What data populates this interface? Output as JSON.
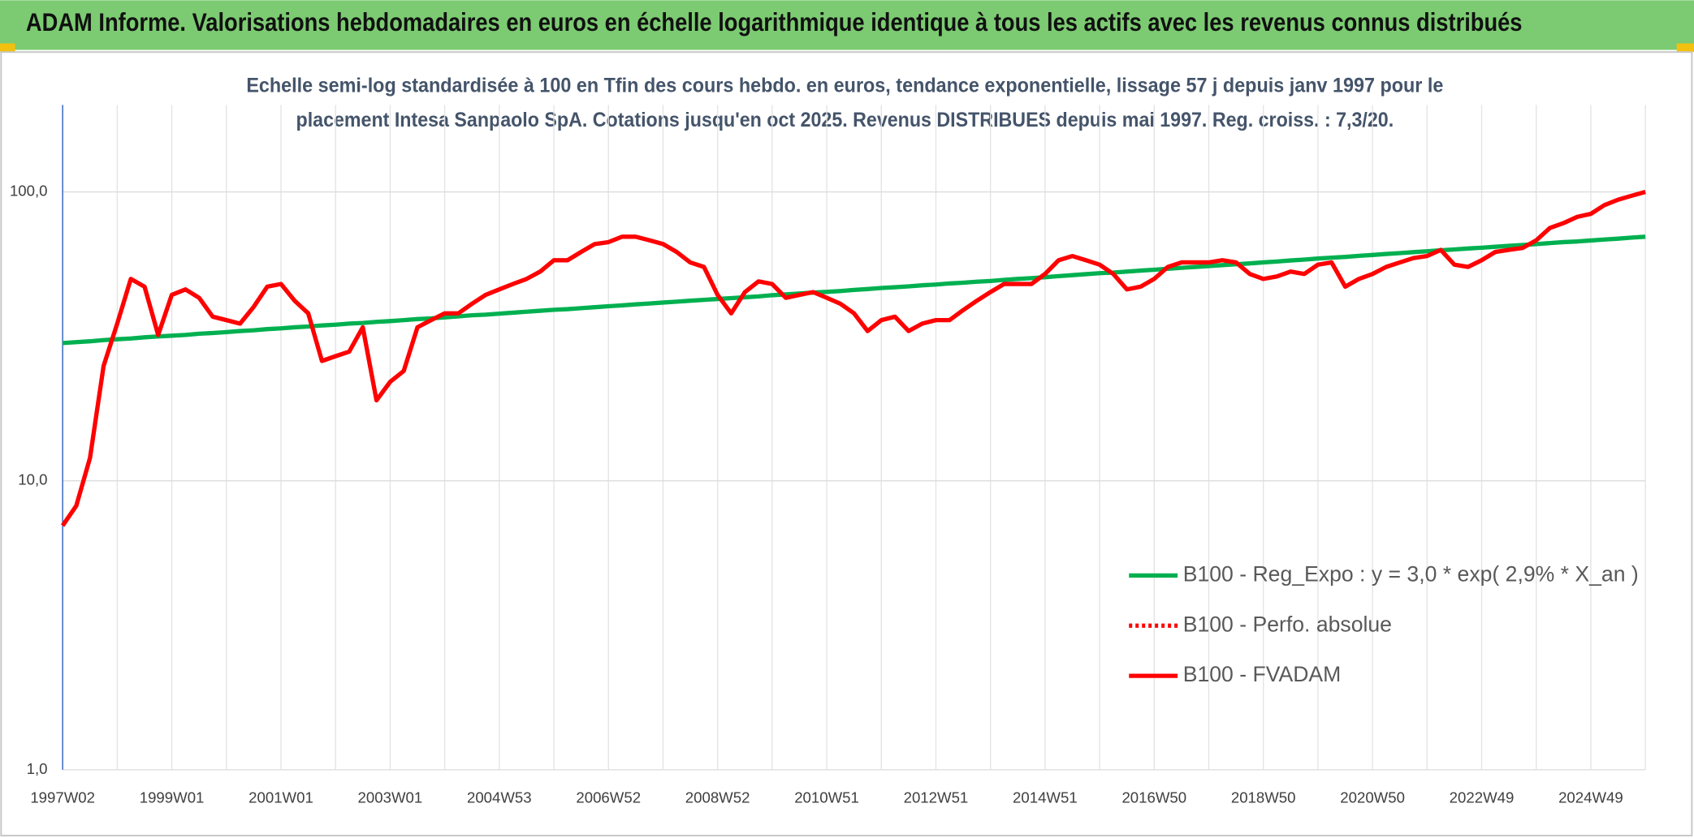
{
  "chart_data": {
    "type": "line",
    "title": "ADAM Informe. Valorisations hebdomadaires en euros en échelle logarithmique identique à tous les actifs avec les revenus connus distribués",
    "subtitle": [
      "Echelle semi-log standardisée à 100 en Tfin des cours hebdo. en euros, tendance exponentielle, lissage 57 j depuis janv 1997 pour le",
      "placement Intesa Sanpaolo SpA. Cotations jusqu'en oct 2025. Revenus DISTRIBUES depuis mai 1997. Reg. croiss. : 7,3/20."
    ],
    "categories": [
      "1997W02",
      null,
      null,
      null,
      null,
      null,
      null,
      null,
      "1999W01",
      null,
      null,
      null,
      null,
      null,
      null,
      null,
      "2001W01",
      null,
      null,
      null,
      null,
      null,
      null,
      null,
      "2003W01",
      null,
      null,
      null,
      null,
      null,
      null,
      null,
      "2004W53",
      null,
      null,
      null,
      null,
      null,
      null,
      null,
      "2006W52",
      null,
      null,
      null,
      null,
      null,
      null,
      null,
      "2008W52",
      null,
      null,
      null,
      null,
      null,
      null,
      null,
      "2010W51",
      null,
      null,
      null,
      null,
      null,
      null,
      null,
      "2012W51",
      null,
      null,
      null,
      null,
      null,
      null,
      null,
      "2014W51",
      null,
      null,
      null,
      null,
      null,
      null,
      null,
      "2016W50",
      null,
      null,
      null,
      null,
      null,
      null,
      null,
      "2018W50",
      null,
      null,
      null,
      null,
      null,
      null,
      null,
      "2020W50",
      null,
      null,
      null,
      null,
      null,
      null,
      null,
      "2022W49",
      null,
      null,
      null,
      null,
      null,
      null,
      null,
      "2024W49",
      null,
      null,
      null,
      null
    ],
    "series": [
      {
        "name": "B100 - Reg_Expo : y = 3,0 * exp( 2,9% *  X_an )",
        "color": "#00b050",
        "line_style": "solid",
        "values": [
          30.0,
          30.2,
          30.4,
          30.7,
          30.9,
          31.1,
          31.4,
          31.6,
          31.8,
          32.0,
          32.3,
          32.5,
          32.7,
          33.0,
          33.2,
          33.5,
          33.7,
          34.0,
          34.2,
          34.5,
          34.7,
          35.0,
          35.2,
          35.5,
          35.7,
          36.0,
          36.3,
          36.5,
          36.8,
          37.1,
          37.4,
          37.6,
          37.9,
          38.2,
          38.5,
          38.8,
          39.1,
          39.3,
          39.6,
          39.9,
          40.2,
          40.5,
          40.8,
          41.1,
          41.4,
          41.7,
          42.0,
          42.3,
          42.6,
          42.9,
          43.2,
          43.5,
          43.9,
          44.2,
          44.5,
          44.8,
          45.1,
          45.4,
          45.8,
          46.1,
          46.5,
          46.8,
          47.1,
          47.5,
          47.8,
          48.2,
          48.5,
          48.9,
          49.2,
          49.6,
          50.0,
          50.3,
          50.7,
          51.1,
          51.5,
          51.9,
          52.3,
          52.6,
          53.0,
          53.4,
          53.8,
          54.2,
          54.6,
          55.0,
          55.4,
          55.8,
          56.2,
          56.6,
          57.0,
          57.4,
          57.9,
          58.3,
          58.8,
          59.2,
          59.6,
          60.1,
          60.5,
          61.0,
          61.4,
          61.9,
          62.3,
          62.8,
          63.2,
          63.7,
          64.1,
          64.6,
          65.1,
          65.5,
          66.0,
          66.5,
          67.0,
          67.4,
          67.9,
          68.4,
          68.9,
          69.5,
          70.0
        ]
      },
      {
        "name": "B100 - Perfo. absolue",
        "color": "#ff0000",
        "line_style": "dotted",
        "values": [
          7.0,
          8.2,
          12,
          25,
          35,
          50,
          47,
          32,
          44,
          46,
          43,
          37,
          36,
          35,
          40,
          47,
          48,
          42,
          38,
          26,
          27,
          28,
          34,
          19,
          22,
          24,
          34,
          36,
          38,
          38,
          41,
          44,
          46,
          48,
          50,
          53,
          58,
          58,
          62,
          66,
          67,
          70,
          70,
          68,
          66,
          62,
          57,
          55,
          44,
          38,
          45,
          49,
          48,
          43,
          44,
          45,
          43,
          41,
          38,
          33,
          36,
          37,
          33,
          35,
          36,
          36,
          39,
          42,
          45,
          48,
          48,
          48,
          52,
          58,
          60,
          58,
          56,
          52,
          46,
          47,
          50,
          55,
          57,
          57,
          57,
          58,
          57,
          52,
          50,
          51,
          53,
          52,
          56,
          57,
          47,
          50,
          52,
          55,
          57,
          59,
          60,
          63,
          56,
          55,
          58,
          62,
          63,
          64,
          68,
          75,
          78,
          82,
          84,
          90,
          94,
          97,
          100
        ]
      },
      {
        "name": "B100 - FVADAM",
        "color": "#ff0000",
        "line_style": "solid",
        "values": [
          7.0,
          8.2,
          12,
          25,
          35,
          50,
          47,
          32,
          44,
          46,
          43,
          37,
          36,
          35,
          40,
          47,
          48,
          42,
          38,
          26,
          27,
          28,
          34,
          19,
          22,
          24,
          34,
          36,
          38,
          38,
          41,
          44,
          46,
          48,
          50,
          53,
          58,
          58,
          62,
          66,
          67,
          70,
          70,
          68,
          66,
          62,
          57,
          55,
          44,
          38,
          45,
          49,
          48,
          43,
          44,
          45,
          43,
          41,
          38,
          33,
          36,
          37,
          33,
          35,
          36,
          36,
          39,
          42,
          45,
          48,
          48,
          48,
          52,
          58,
          60,
          58,
          56,
          52,
          46,
          47,
          50,
          55,
          57,
          57,
          57,
          58,
          57,
          52,
          50,
          51,
          53,
          52,
          56,
          57,
          47,
          50,
          52,
          55,
          57,
          59,
          60,
          63,
          56,
          55,
          58,
          62,
          63,
          64,
          68,
          75,
          78,
          82,
          84,
          90,
          94,
          97,
          100
        ]
      }
    ],
    "ylim": [
      1,
      200
    ],
    "log_y": true,
    "yticks": [
      {
        "value": 1,
        "label": "1,0"
      },
      {
        "value": 10,
        "label": "10,0"
      },
      {
        "value": 100,
        "label": "100,0"
      }
    ],
    "grid": true,
    "legend_position": "right"
  }
}
